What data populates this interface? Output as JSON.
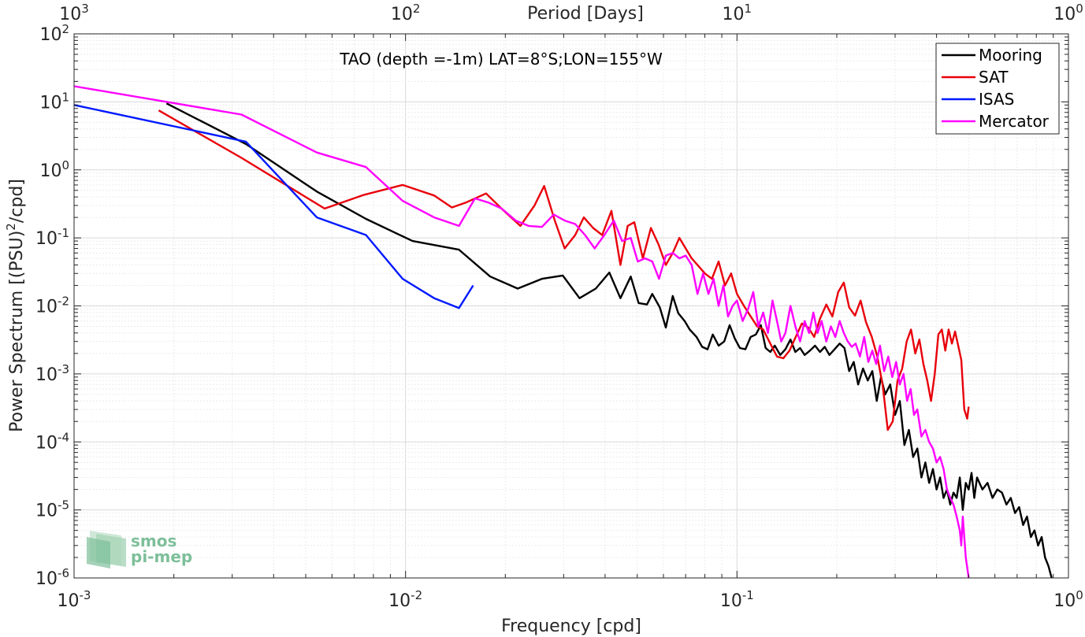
{
  "chart_data": {
    "type": "line",
    "title": "TAO (depth =-1m) LAT=8°S;LON=155°W",
    "xlabel": "Frequency [cpd]",
    "ylabel": "Power Spectrum [(PSU)²/cpd]",
    "ylabel_main": "Power Spectrum [(PSU)",
    "ylabel_sup": "2",
    "ylabel_tail": "/cpd]",
    "x2label": "Period [Days]",
    "xscale": "log",
    "yscale": "log",
    "xlim": [
      0.001,
      1
    ],
    "ylim": [
      1e-06,
      100
    ],
    "grid": true,
    "legend_position": "top-right",
    "x_ticks": [
      {
        "base": "10",
        "exp": "-3"
      },
      {
        "base": "10",
        "exp": "-2"
      },
      {
        "base": "10",
        "exp": "-1"
      },
      {
        "base": "10",
        "exp": "0"
      }
    ],
    "y_ticks": [
      {
        "base": "10",
        "exp": "-6"
      },
      {
        "base": "10",
        "exp": "-5"
      },
      {
        "base": "10",
        "exp": "-4"
      },
      {
        "base": "10",
        "exp": "-3"
      },
      {
        "base": "10",
        "exp": "-2"
      },
      {
        "base": "10",
        "exp": "-1"
      },
      {
        "base": "10",
        "exp": "0"
      },
      {
        "base": "10",
        "exp": "1"
      },
      {
        "base": "10",
        "exp": "2"
      }
    ],
    "x2_ticks": [
      {
        "base": "10",
        "exp": "3"
      },
      {
        "base": "10",
        "exp": "2"
      },
      {
        "base": "10",
        "exp": "1"
      },
      {
        "base": "10",
        "exp": "0"
      }
    ],
    "series": [
      {
        "name": "Mooring",
        "color": "#000000",
        "x": [
          0.0019,
          0.0033,
          0.0054,
          0.0076,
          0.0105,
          0.0145,
          0.018,
          0.0218,
          0.0258,
          0.0298,
          0.0335,
          0.0375,
          0.0412,
          0.0445,
          0.0478,
          0.0505,
          0.0535,
          0.0555,
          0.0585,
          0.061,
          0.064,
          0.0665,
          0.0695,
          0.072,
          0.0755,
          0.0785,
          0.0815,
          0.0845,
          0.088,
          0.0915,
          0.095,
          0.0985,
          0.102,
          0.106,
          0.11,
          0.114,
          0.118,
          0.122,
          0.126,
          0.13,
          0.135,
          0.14,
          0.145,
          0.15,
          0.155,
          0.16,
          0.166,
          0.172,
          0.178,
          0.184,
          0.19,
          0.197,
          0.204,
          0.211,
          0.218,
          0.225,
          0.232,
          0.24,
          0.248,
          0.256,
          0.264,
          0.272,
          0.28,
          0.29,
          0.3,
          0.31,
          0.32,
          0.33,
          0.34,
          0.35,
          0.36,
          0.37,
          0.38,
          0.39,
          0.4,
          0.41,
          0.42,
          0.43,
          0.44,
          0.45,
          0.46,
          0.47,
          0.48,
          0.49,
          0.5,
          0.51,
          0.52,
          0.53,
          0.55,
          0.57,
          0.59,
          0.61,
          0.63,
          0.65,
          0.67,
          0.69,
          0.71,
          0.73,
          0.75,
          0.77,
          0.79,
          0.81,
          0.83,
          0.85,
          0.87,
          0.89
        ],
        "y": [
          9.5,
          2.4,
          0.48,
          0.19,
          0.09,
          0.067,
          0.027,
          0.018,
          0.025,
          0.028,
          0.013,
          0.018,
          0.031,
          0.013,
          0.027,
          0.011,
          0.0105,
          0.015,
          0.0095,
          0.0048,
          0.014,
          0.0078,
          0.006,
          0.0045,
          0.0035,
          0.0025,
          0.0023,
          0.0038,
          0.0026,
          0.003,
          0.0052,
          0.0033,
          0.0024,
          0.0023,
          0.0035,
          0.0038,
          0.0052,
          0.0024,
          0.0021,
          0.0026,
          0.0019,
          0.0023,
          0.0032,
          0.0021,
          0.0024,
          0.0019,
          0.0022,
          0.0026,
          0.0021,
          0.0025,
          0.0019,
          0.0023,
          0.0028,
          0.0024,
          0.0011,
          0.0015,
          0.0007,
          0.0012,
          0.0008,
          0.0011,
          0.0004,
          0.0009,
          0.0005,
          0.0007,
          0.00025,
          0.0004,
          9e-05,
          0.00015,
          6e-05,
          8e-05,
          3e-05,
          5e-05,
          2.5e-05,
          4e-05,
          2e-05,
          3e-05,
          1.5e-05,
          2e-05,
          1.2e-05,
          1.8e-05,
          1.5e-05,
          3e-05,
          1e-05,
          2.5e-05,
          2e-05,
          3.5e-05,
          1.5e-05,
          3e-05,
          2e-05,
          2.5e-05,
          1.5e-05,
          2e-05,
          1.8e-05,
          1.2e-05,
          1.5e-05,
          9e-06,
          1.1e-05,
          6e-06,
          8e-06,
          4e-06,
          5e-06,
          3e-06,
          4e-06,
          2e-06,
          1.5e-06,
          1e-06
        ]
      },
      {
        "name": "SAT",
        "color": "#e8000b",
        "x": [
          0.0018,
          0.0032,
          0.0057,
          0.0075,
          0.0098,
          0.0122,
          0.0138,
          0.0152,
          0.0175,
          0.0198,
          0.0222,
          0.0245,
          0.0262,
          0.0282,
          0.0302,
          0.0325,
          0.0345,
          0.0368,
          0.0392,
          0.0418,
          0.0445,
          0.0468,
          0.049,
          0.052,
          0.055,
          0.058,
          0.061,
          0.064,
          0.067,
          0.07,
          0.073,
          0.076,
          0.08,
          0.084,
          0.088,
          0.092,
          0.096,
          0.1,
          0.105,
          0.11,
          0.115,
          0.12,
          0.126,
          0.132,
          0.138,
          0.144,
          0.15,
          0.157,
          0.164,
          0.171,
          0.178,
          0.186,
          0.194,
          0.202,
          0.21,
          0.218,
          0.227,
          0.236,
          0.245,
          0.255,
          0.265,
          0.275,
          0.285,
          0.295,
          0.305,
          0.315,
          0.325,
          0.335,
          0.345,
          0.355,
          0.365,
          0.375,
          0.385,
          0.395,
          0.405,
          0.415,
          0.425,
          0.435,
          0.445,
          0.455,
          0.465,
          0.475,
          0.485,
          0.495,
          0.5
        ],
        "y": [
          7.5,
          1.5,
          0.27,
          0.43,
          0.6,
          0.42,
          0.28,
          0.33,
          0.45,
          0.25,
          0.15,
          0.3,
          0.58,
          0.18,
          0.07,
          0.11,
          0.2,
          0.14,
          0.11,
          0.25,
          0.04,
          0.15,
          0.17,
          0.05,
          0.14,
          0.08,
          0.04,
          0.06,
          0.1,
          0.07,
          0.05,
          0.04,
          0.03,
          0.025,
          0.045,
          0.02,
          0.03,
          0.015,
          0.01,
          0.007,
          0.005,
          0.0045,
          0.0028,
          0.0018,
          0.0017,
          0.0022,
          0.0034,
          0.0055,
          0.0048,
          0.0035,
          0.0065,
          0.0105,
          0.007,
          0.016,
          0.022,
          0.0095,
          0.0072,
          0.012,
          0.0058,
          0.0035,
          0.0018,
          0.0007,
          0.00015,
          0.0002,
          0.0008,
          0.0012,
          0.003,
          0.0045,
          0.002,
          0.0032,
          0.0014,
          0.0008,
          0.0004,
          0.001,
          0.0038,
          0.0045,
          0.0022,
          0.0045,
          0.0028,
          0.0042,
          0.0026,
          0.0016,
          0.0003,
          0.00022,
          0.00033
        ]
      },
      {
        "name": "ISAS",
        "color": "#0019ff",
        "x": [
          0.001,
          0.0033,
          0.0054,
          0.0076,
          0.0098,
          0.0122,
          0.0145,
          0.016
        ],
        "y": [
          9.0,
          2.6,
          0.2,
          0.11,
          0.025,
          0.013,
          0.0093,
          0.02
        ]
      },
      {
        "name": "Mercator",
        "color": "#ff00ff",
        "x": [
          0.001,
          0.0032,
          0.0054,
          0.0076,
          0.0098,
          0.0122,
          0.0145,
          0.0162,
          0.0178,
          0.0195,
          0.0215,
          0.0235,
          0.0258,
          0.028,
          0.0302,
          0.0325,
          0.0348,
          0.0372,
          0.0398,
          0.0425,
          0.045,
          0.0478,
          0.0502,
          0.0528,
          0.0555,
          0.0582,
          0.061,
          0.064,
          0.067,
          0.07,
          0.073,
          0.076,
          0.079,
          0.082,
          0.085,
          0.088,
          0.091,
          0.094,
          0.097,
          0.1,
          0.104,
          0.108,
          0.112,
          0.116,
          0.12,
          0.124,
          0.128,
          0.132,
          0.136,
          0.14,
          0.145,
          0.15,
          0.155,
          0.16,
          0.165,
          0.17,
          0.175,
          0.18,
          0.186,
          0.192,
          0.198,
          0.204,
          0.21,
          0.216,
          0.222,
          0.228,
          0.235,
          0.242,
          0.249,
          0.256,
          0.263,
          0.27,
          0.278,
          0.286,
          0.294,
          0.302,
          0.31,
          0.318,
          0.326,
          0.334,
          0.342,
          0.35,
          0.36,
          0.37,
          0.38,
          0.39,
          0.4,
          0.41,
          0.42,
          0.43,
          0.44,
          0.45,
          0.46,
          0.47,
          0.475,
          0.48,
          0.49,
          0.5
        ],
        "y": [
          17,
          6.5,
          1.8,
          1.1,
          0.35,
          0.2,
          0.15,
          0.38,
          0.33,
          0.27,
          0.18,
          0.15,
          0.145,
          0.22,
          0.18,
          0.16,
          0.11,
          0.07,
          0.11,
          0.18,
          0.09,
          0.1,
          0.045,
          0.05,
          0.045,
          0.025,
          0.055,
          0.06,
          0.05,
          0.055,
          0.04,
          0.015,
          0.03,
          0.015,
          0.025,
          0.01,
          0.02,
          0.007,
          0.01,
          0.012,
          0.006,
          0.009,
          0.016,
          0.005,
          0.008,
          0.004,
          0.012,
          0.006,
          0.003,
          0.004,
          0.01,
          0.005,
          0.003,
          0.006,
          0.004,
          0.008,
          0.004,
          0.006,
          0.003,
          0.005,
          0.0035,
          0.006,
          0.004,
          0.003,
          0.0025,
          0.0028,
          0.0018,
          0.0035,
          0.0015,
          0.0022,
          0.0014,
          0.0026,
          0.0011,
          0.0018,
          0.0009,
          0.0015,
          0.0007,
          0.001,
          0.0004,
          0.0006,
          0.00025,
          0.0003,
          0.00012,
          0.00015,
          0.0001,
          8e-05,
          5e-05,
          6e-05,
          4e-05,
          2e-05,
          1.5e-05,
          1.2e-05,
          8e-06,
          5e-06,
          3e-06,
          8e-06,
          2e-06,
          1e-06
        ]
      }
    ]
  },
  "logo": {
    "line1": "smos",
    "line2": "pi-mep"
  }
}
